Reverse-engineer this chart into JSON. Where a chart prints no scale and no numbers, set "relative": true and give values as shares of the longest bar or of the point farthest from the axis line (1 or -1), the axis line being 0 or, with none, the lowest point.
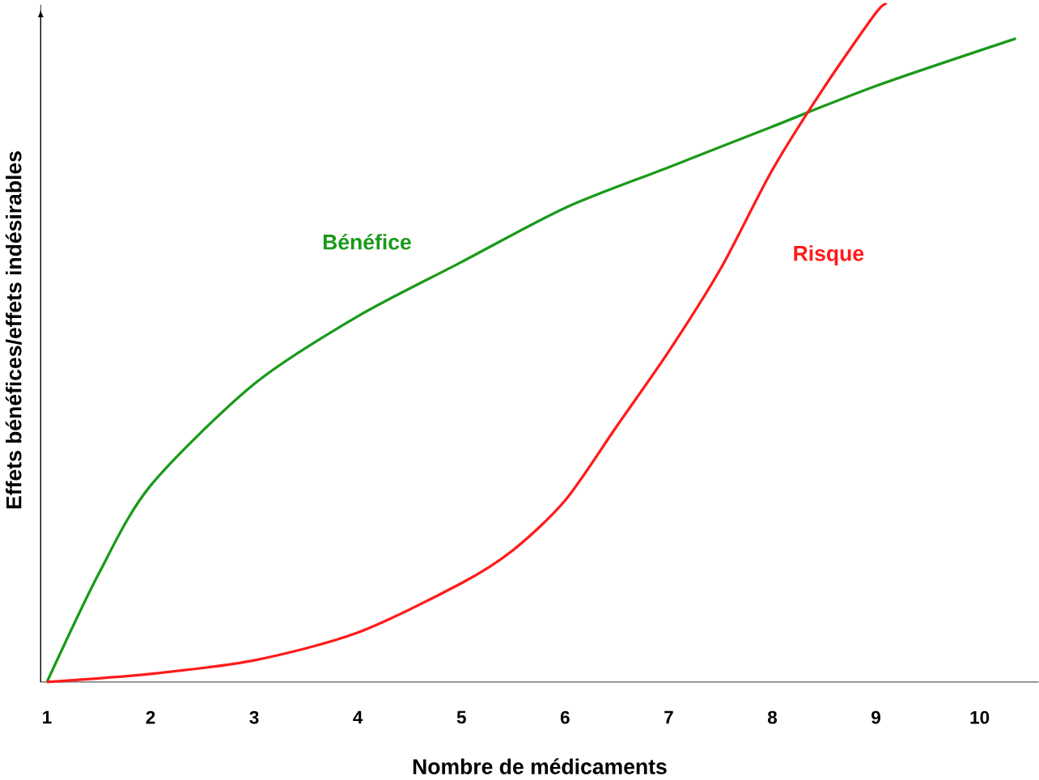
{
  "chart_data": {
    "type": "line",
    "xlabel": "Nombre de médicaments",
    "ylabel": "Effets bénéfices/effets indésirables",
    "relative": true,
    "xlim": [
      0.94,
      10.57
    ],
    "xticks": [
      1,
      2,
      3,
      4,
      5,
      6,
      7,
      8,
      9,
      10
    ],
    "series": [
      {
        "name": "Bénéfice",
        "color": "#1a9a1a",
        "x": [
          1,
          1.5,
          2,
          3,
          4,
          5,
          6,
          7,
          8,
          9,
          10.35
        ],
        "values": [
          0,
          0.16,
          0.29,
          0.44,
          0.54,
          0.62,
          0.7,
          0.76,
          0.82,
          0.88,
          0.95
        ]
      },
      {
        "name": "Risque",
        "color": "#ff1a1a",
        "x": [
          1,
          2,
          3,
          4,
          5,
          5.5,
          6,
          6.5,
          7,
          7.5,
          8,
          8.5,
          9,
          9.1
        ],
        "values": [
          0,
          0.012,
          0.032,
          0.073,
          0.146,
          0.195,
          0.268,
          0.378,
          0.488,
          0.61,
          0.756,
          0.878,
          0.988,
          1
        ]
      }
    ]
  }
}
